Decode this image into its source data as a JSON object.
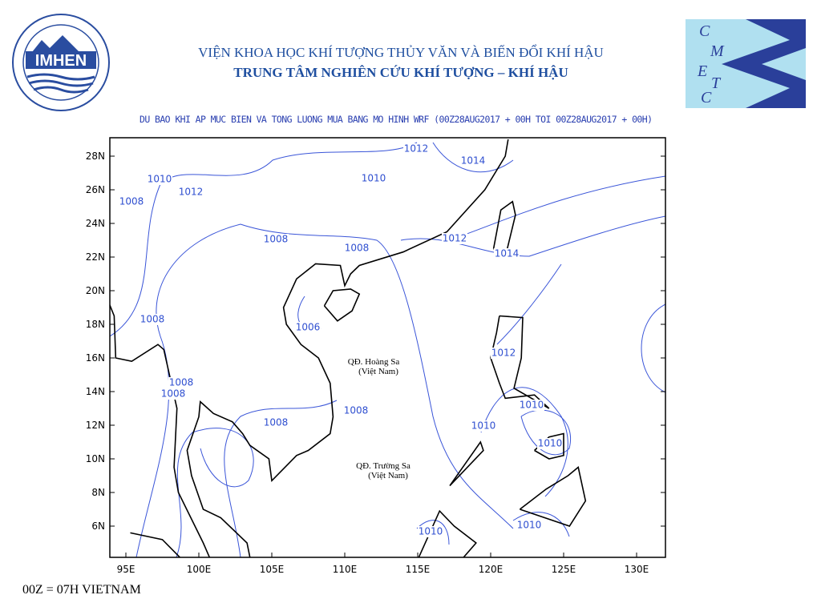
{
  "header": {
    "line1": "VIỆN KHOA HỌC KHÍ TƯỢNG THỦY VĂN VÀ BIẾN ĐỔI KHÍ HẬU",
    "line2": "TRUNG TÂM NGHIÊN CỨU KHÍ TƯỢNG – KHÍ HẬU"
  },
  "logo_left": {
    "name": "IMHEN"
  },
  "logo_right": {
    "letters": [
      "C",
      "M",
      "E",
      "T",
      "C"
    ]
  },
  "map": {
    "title": "DU BAO KHI AP MUC BIEN VA TONG LUONG MUA BANG MO HINH WRF (00Z28AUG2017 + 00H TOI 00Z28AUG2017 + 00H)",
    "lat_ticks": [
      "28N",
      "26N",
      "24N",
      "22N",
      "20N",
      "18N",
      "16N",
      "14N",
      "12N",
      "10N",
      "8N",
      "6N"
    ],
    "lon_ticks": [
      "95E",
      "100E",
      "105E",
      "110E",
      "115E",
      "120E",
      "125E",
      "130E"
    ],
    "contour_labels": [
      "1012",
      "1014",
      "1010",
      "1010",
      "1012",
      "1008",
      "1008",
      "1008",
      "1012",
      "1014",
      "1006",
      "1008",
      "1012",
      "1008",
      "1008",
      "1008",
      "1008",
      "1010",
      "1010",
      "1010",
      "1010",
      "1010"
    ],
    "places": [
      {
        "name": "QĐ. Hoàng Sa",
        "country": "(Việt Nam)"
      },
      {
        "name": "QĐ. Trường Sa",
        "country": "(Việt Nam)"
      }
    ]
  },
  "footer": "00Z = 07H VIETNAM"
}
